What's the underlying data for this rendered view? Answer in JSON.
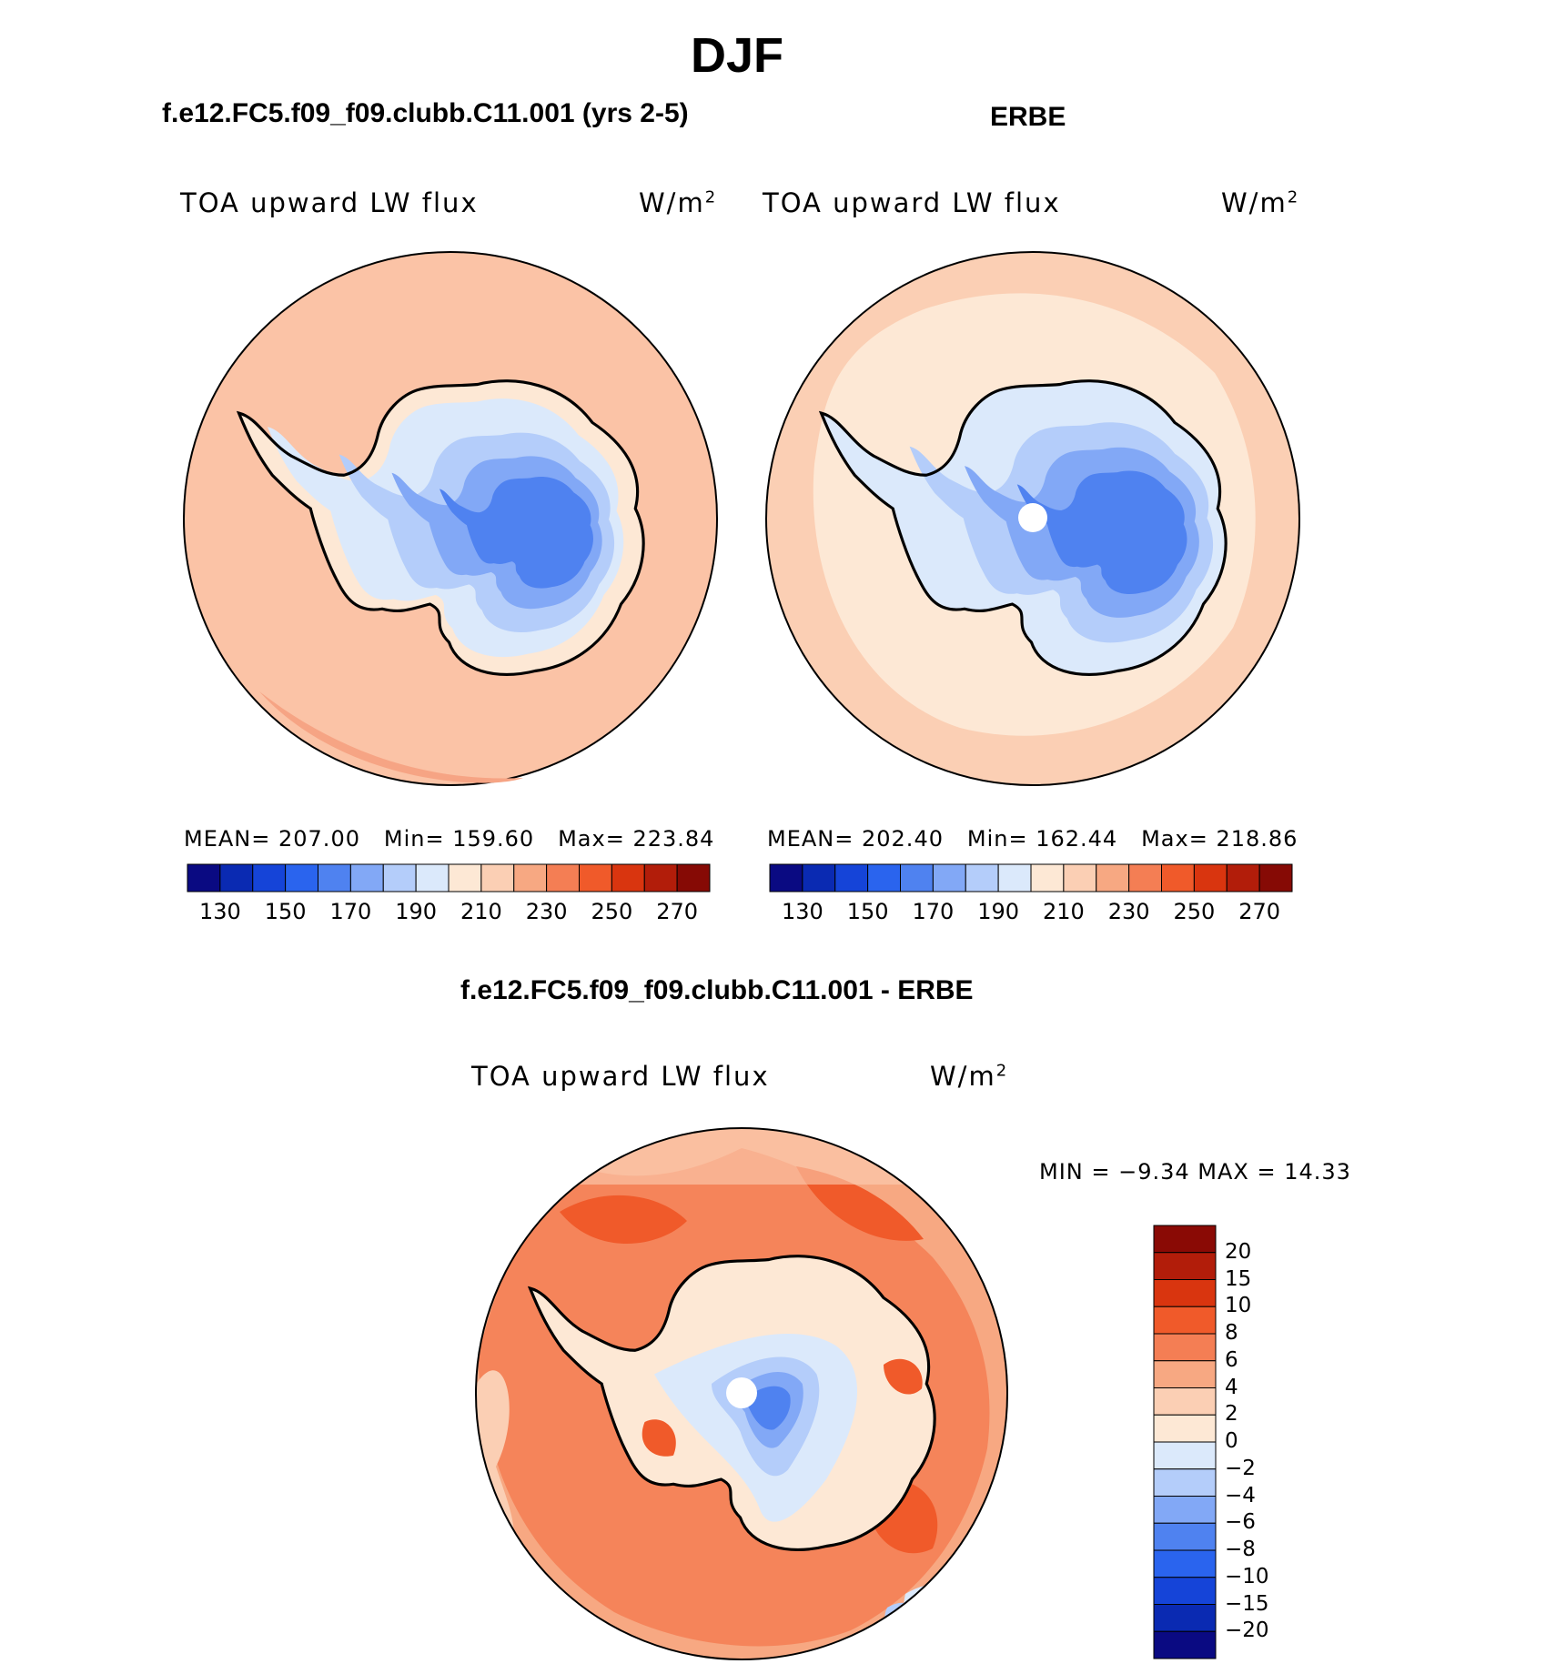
{
  "figure": {
    "title": "DJF"
  },
  "panels": [
    {
      "id": "model",
      "header": "f.e12.FC5.f09_f09.clubb.C11.001 (yrs 2-5)",
      "variable": "TOA upward LW flux",
      "units": "W/m",
      "units_exp": "2",
      "stats": {
        "mean_label": "MEAN=",
        "mean": "207.00",
        "min_label": "Min=",
        "min": "159.60",
        "max_label": "Max=",
        "max": "223.84"
      }
    },
    {
      "id": "obs",
      "header": "ERBE",
      "variable": "TOA upward LW flux",
      "units": "W/m",
      "units_exp": "2",
      "stats": {
        "mean_label": "MEAN=",
        "mean": "202.40",
        "min_label": "Min=",
        "min": "162.44",
        "max_label": "Max=",
        "max": "218.86"
      }
    }
  ],
  "difference": {
    "header": "f.e12.FC5.f09_f09.clubb.C11.001 - ERBE",
    "variable": "TOA upward LW flux",
    "units": "W/m",
    "units_exp": "2",
    "minmax": "MIN =    −9.34 MAX =    14.33"
  },
  "colorbar_abs": {
    "colors": [
      "#0a0a82",
      "#0a2ab2",
      "#1544d8",
      "#2a64ee",
      "#4f82f0",
      "#82a8f6",
      "#b4cdfa",
      "#dbe9fb",
      "#fde8d5",
      "#fbcfb4",
      "#f7a882",
      "#f47e54",
      "#f05a2a",
      "#d9350f",
      "#b21d0a",
      "#860a05"
    ],
    "ticks": [
      "130",
      "150",
      "170",
      "190",
      "210",
      "230",
      "250",
      "270"
    ]
  },
  "colorbar_diff": {
    "colors_top_to_bottom": [
      "#8a0a05",
      "#b21d0a",
      "#d9350f",
      "#f05a2a",
      "#f47e54",
      "#f7a882",
      "#fbcfb4",
      "#fde8d5",
      "#dbe9fb",
      "#b4cdfa",
      "#82a8f6",
      "#4f82f0",
      "#2a64ee",
      "#1544d8",
      "#0a2ab2",
      "#0a0a82"
    ],
    "ticks": [
      "20",
      "15",
      "10",
      "8",
      "6",
      "4",
      "2",
      "0",
      "−2",
      "−4",
      "−6",
      "−8",
      "−10",
      "−15",
      "−20"
    ]
  }
}
